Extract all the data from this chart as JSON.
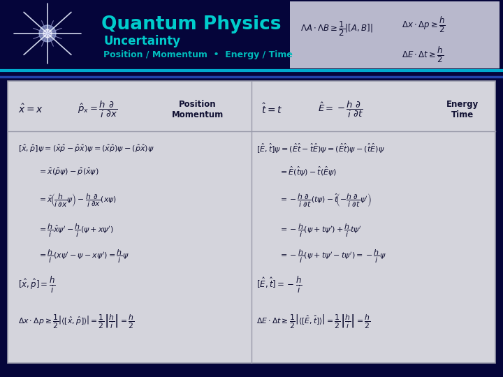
{
  "title": "Quantum Physics",
  "subtitle": "Uncertainty",
  "subtitle2": "Position / Momentum  •  Energy / Time",
  "bg_header": "#05053a",
  "bg_main": "#d4d4dc",
  "header_title_color": "#00cccc",
  "header_subtitle_color": "#00cccc",
  "header_sub2_color": "#00bbbb",
  "divider_color1": "#00aacc",
  "divider_color2": "#2244aa",
  "col_label_left": "Position\nMomentum",
  "col_label_right": "Energy\nTime",
  "border_color": "#999aaa",
  "text_color": "#111133",
  "rbox_bg": "#b8b8cc",
  "footer_color": "#05053a"
}
